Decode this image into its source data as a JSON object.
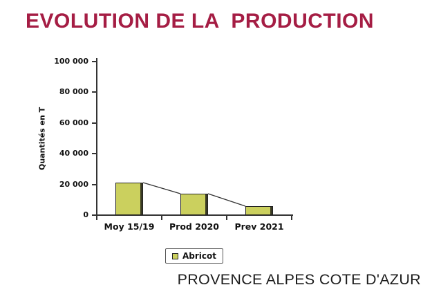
{
  "title": "EVOLUTION DE LA  PRODUCTION",
  "footer": "PROVENCE ALPES COTE D'AZUR",
  "colors": {
    "title": "#a51d44",
    "bar_fill": "#cbd05e",
    "bar_edge": "#3a3a24",
    "axis": "#333333"
  },
  "chart_data": {
    "type": "bar",
    "categories": [
      "Moy 15/19",
      "Prod 2020",
      "Prev 2021"
    ],
    "series": [
      {
        "name": "Abricot",
        "values": [
          21000,
          14000,
          6000
        ]
      }
    ],
    "title": "EVOLUTION DE LA  PRODUCTION",
    "xlabel": "",
    "ylabel": "Quantités en T",
    "ylim": [
      0,
      100000
    ],
    "yticks": [
      0,
      20000,
      40000,
      60000,
      80000,
      100000
    ],
    "ytick_labels": [
      "0",
      "20 000",
      "40 000",
      "60 000",
      "80 000",
      "100 000"
    ],
    "grid": false,
    "legend_position": "bottom",
    "annotations": "thin trend line connecting successive bar tops"
  }
}
